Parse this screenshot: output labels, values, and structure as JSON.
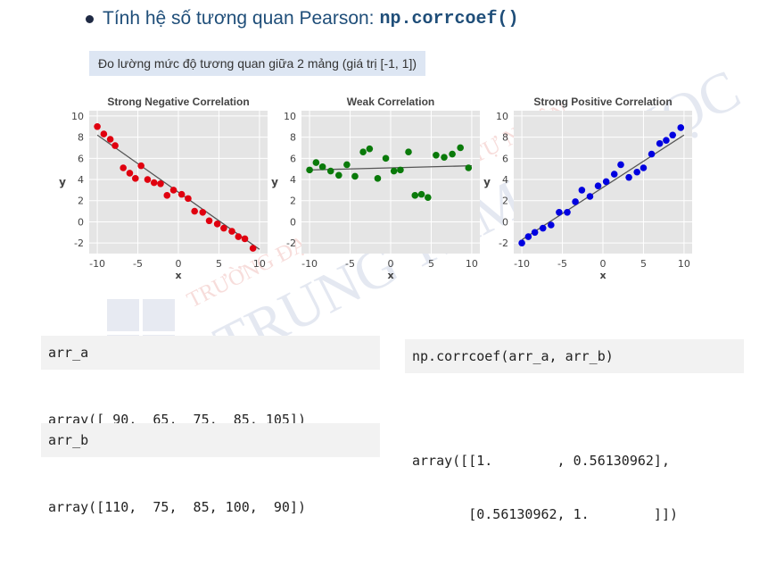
{
  "heading": {
    "text": "Tính hệ số tương quan Pearson: ",
    "code": "np.corrcoef()"
  },
  "subtitle": "Đo lường mức độ tương quan giữa 2 mảng (giá trị [-1, 1])",
  "watermark": {
    "line1": "TRƯỜNG ĐẠI HỌC KHOA HỌC TỰ NHIÊN",
    "line2": "TRUNG TÂM TIN HỌC"
  },
  "code_cells": {
    "arr_a_input": "arr_a",
    "arr_a_output": "array([ 90,  65,  75,  85, 105])",
    "arr_b_input": "arr_b",
    "arr_b_output": "array([110,  75,  85, 100,  90])",
    "corr_input": "np.corrcoef(arr_a, arr_b)",
    "corr_output_line1": "array([[1.        , 0.56130962],",
    "corr_output_line2": "       [0.56130962, 1.        ]])"
  },
  "colors": {
    "negative": "#e0000f",
    "weak": "#0a7a0a",
    "positive": "#0000e0",
    "plot_bg": "#e5e5e5",
    "fit_line": "#555555"
  },
  "chart_data": [
    {
      "type": "scatter",
      "title": "Strong Negative Correlation",
      "xlabel": "x",
      "ylabel": "y",
      "xlim": [
        -11,
        11
      ],
      "ylim": [
        -3,
        10.5
      ],
      "xticks": [
        -10,
        -5,
        0,
        5,
        10
      ],
      "yticks": [
        -2,
        0,
        2,
        4,
        6,
        8,
        10
      ],
      "grid": true,
      "color_key": "negative",
      "x": [
        -10,
        -9.2,
        -8.4,
        -7.8,
        -6.8,
        -6.0,
        -5.3,
        -4.6,
        -3.8,
        -3.0,
        -2.2,
        -1.4,
        -0.6,
        0.4,
        1.2,
        2.0,
        3.0,
        3.8,
        4.8,
        5.6,
        6.6,
        7.4,
        8.2,
        9.2
      ],
      "y": [
        9.0,
        8.3,
        7.8,
        7.2,
        5.1,
        4.6,
        4.1,
        5.3,
        4.0,
        3.7,
        3.6,
        2.5,
        3.0,
        2.6,
        2.2,
        1.0,
        0.9,
        0.1,
        -0.2,
        -0.6,
        -0.9,
        -1.4,
        -1.6,
        -2.5
      ],
      "fit": [
        [
          -10,
          8.2
        ],
        [
          10,
          -2.6
        ]
      ]
    },
    {
      "type": "scatter",
      "title": "Weak Correlation",
      "xlabel": "x",
      "ylabel": "y",
      "xlim": [
        -11,
        11
      ],
      "ylim": [
        -3,
        10.5
      ],
      "xticks": [
        -10,
        -5,
        0,
        5,
        10
      ],
      "yticks": [
        -2,
        0,
        2,
        4,
        6,
        8,
        10
      ],
      "grid": true,
      "color_key": "weak",
      "x": [
        -10,
        -9.2,
        -8.4,
        -7.4,
        -6.4,
        -5.4,
        -4.4,
        -3.4,
        -2.6,
        -1.6,
        -0.6,
        0.4,
        1.2,
        2.2,
        3.0,
        3.8,
        4.6,
        5.6,
        6.6,
        7.6,
        8.6,
        9.6
      ],
      "y": [
        4.9,
        5.6,
        5.2,
        4.8,
        4.4,
        5.4,
        4.3,
        6.6,
        6.9,
        4.1,
        6.0,
        4.8,
        4.9,
        6.6,
        2.5,
        2.6,
        2.3,
        6.3,
        6.1,
        6.4,
        7.0,
        5.1
      ],
      "fit": [
        [
          -10,
          4.9
        ],
        [
          10,
          5.3
        ]
      ]
    },
    {
      "type": "scatter",
      "title": "Strong Positive Correlation",
      "xlabel": "x",
      "ylabel": "y",
      "xlim": [
        -11,
        11
      ],
      "ylim": [
        -3,
        10.5
      ],
      "xticks": [
        -10,
        -5,
        0,
        5,
        10
      ],
      "yticks": [
        -2,
        0,
        2,
        4,
        6,
        8,
        10
      ],
      "grid": true,
      "color_key": "positive",
      "x": [
        -10,
        -9.2,
        -8.4,
        -7.4,
        -6.4,
        -5.4,
        -4.4,
        -3.4,
        -2.6,
        -1.6,
        -0.6,
        0.4,
        1.4,
        2.2,
        3.2,
        4.2,
        5.0,
        6.0,
        7.0,
        7.8,
        8.6,
        9.6
      ],
      "y": [
        -2.0,
        -1.4,
        -1.0,
        -0.6,
        -0.3,
        0.9,
        0.9,
        1.9,
        3.0,
        2.4,
        3.4,
        3.8,
        4.5,
        5.4,
        4.2,
        4.7,
        5.1,
        6.4,
        7.4,
        7.7,
        8.2,
        8.9
      ],
      "fit": [
        [
          -10,
          -1.7
        ],
        [
          10,
          8.2
        ]
      ]
    }
  ]
}
